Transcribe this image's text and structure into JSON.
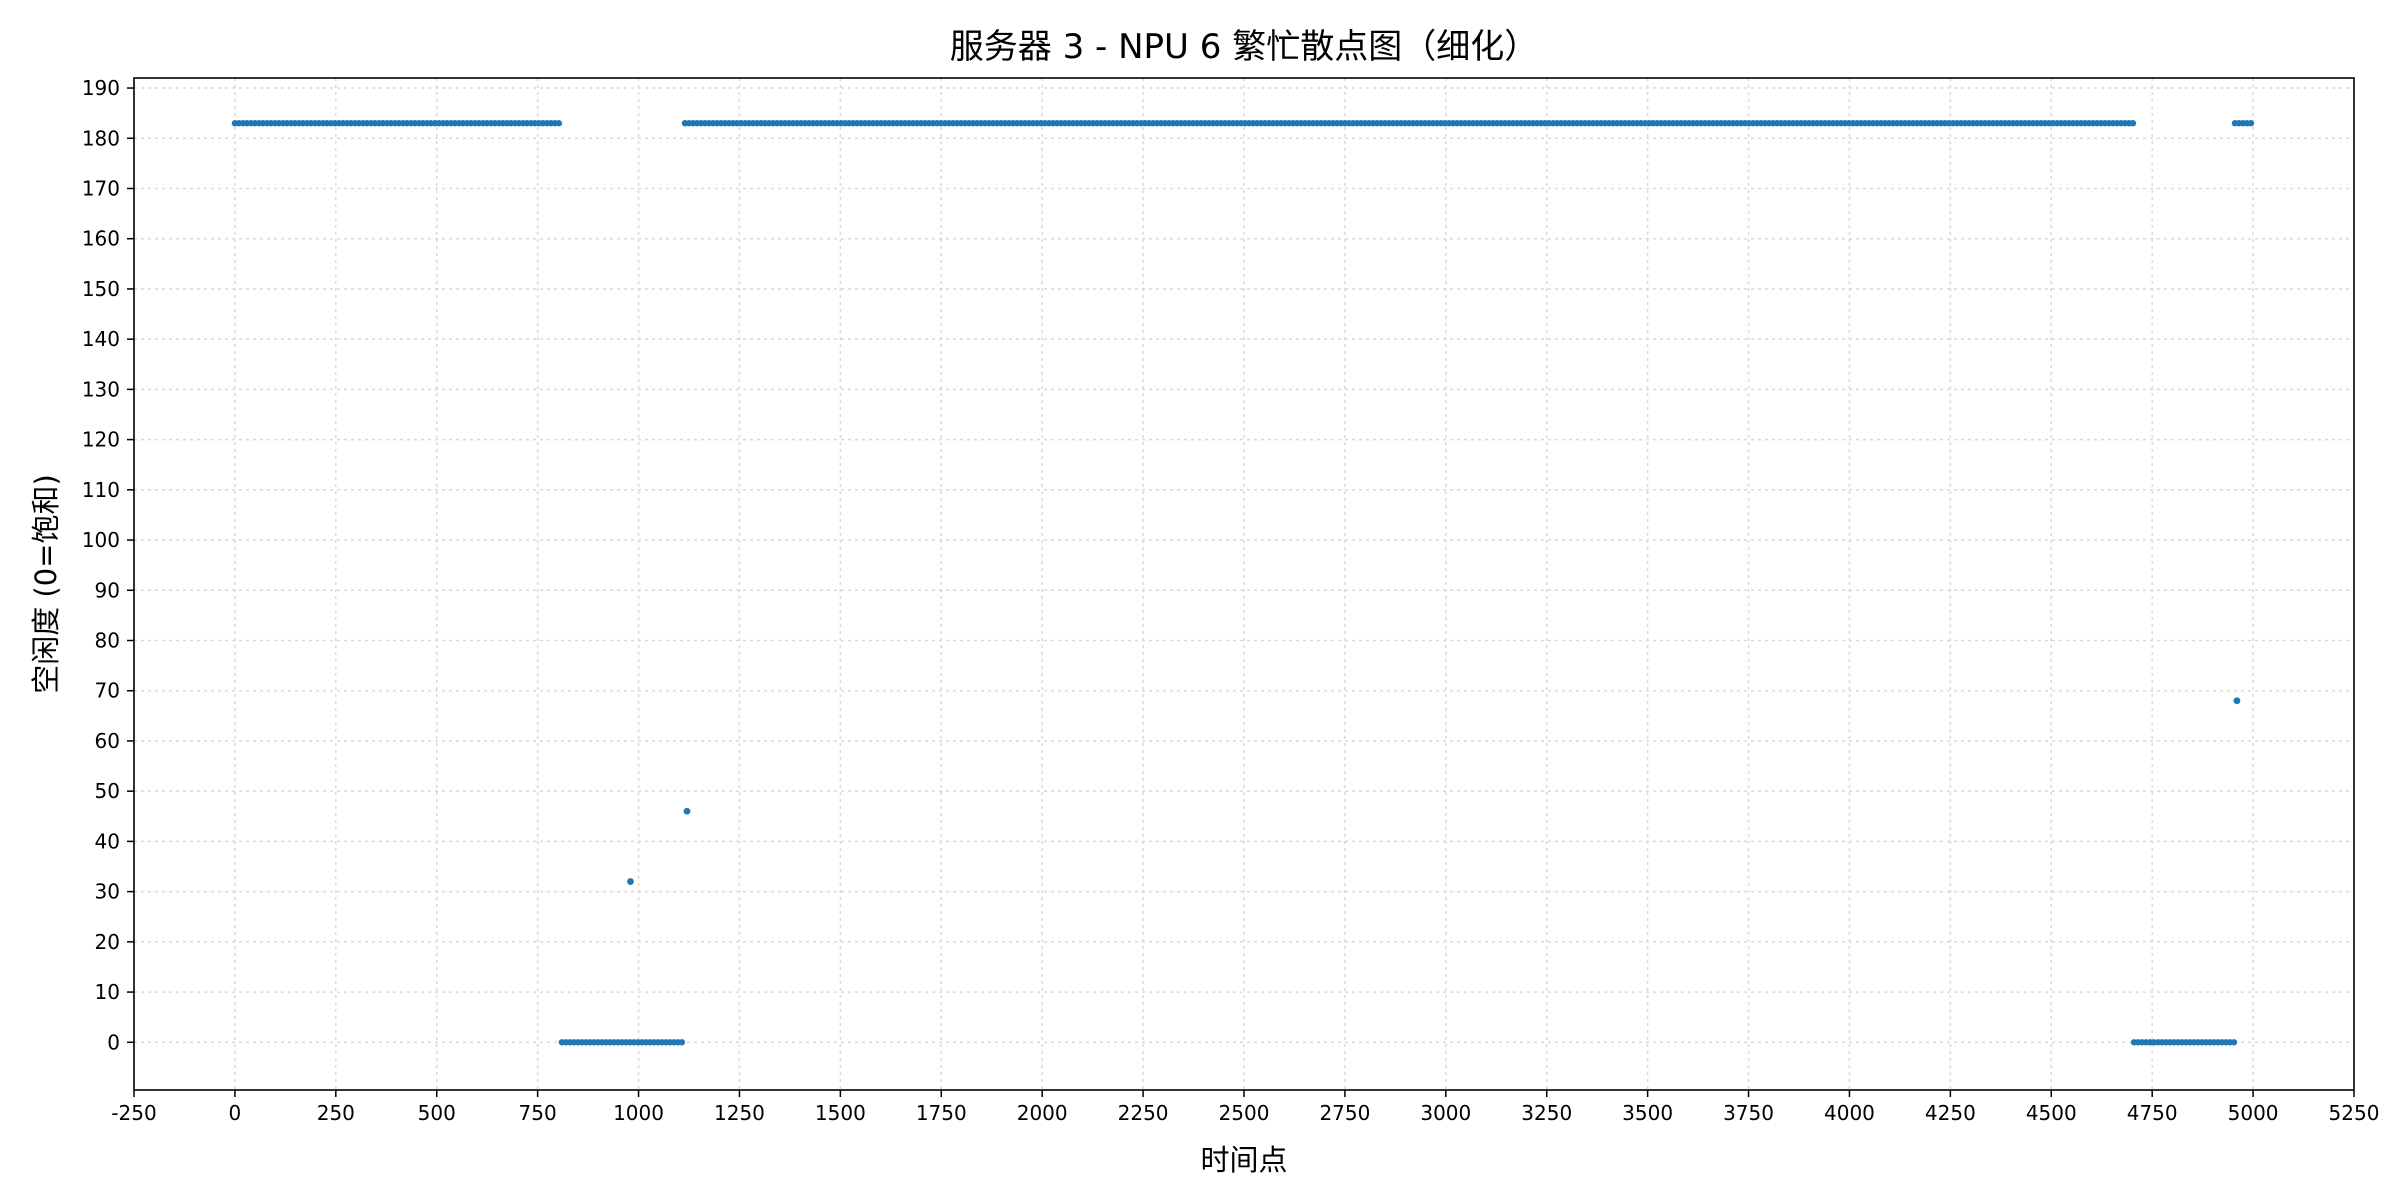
{
  "chart_data": {
    "type": "scatter",
    "title": "服务器 3 - NPU 6 繁忙散点图（细化）",
    "xlabel": "时间点",
    "ylabel": "空闲度 (0=饱和)",
    "xlim": [
      -250,
      5250
    ],
    "ylim": [
      -9.5,
      192
    ],
    "x_ticks": [
      -250,
      0,
      250,
      500,
      750,
      1000,
      1250,
      1500,
      1750,
      2000,
      2250,
      2500,
      2750,
      3000,
      3250,
      3500,
      3750,
      4000,
      4250,
      4500,
      4750,
      5000,
      5250
    ],
    "y_ticks": [
      0,
      10,
      20,
      30,
      40,
      50,
      60,
      70,
      80,
      90,
      100,
      110,
      120,
      130,
      140,
      150,
      160,
      170,
      180,
      190
    ],
    "grid": true,
    "marker_color": "#1f77b4",
    "segments": [
      {
        "x_start": 0,
        "x_end": 810,
        "y": 183
      },
      {
        "x_start": 810,
        "x_end": 1115,
        "y": 0
      },
      {
        "x_start": 1115,
        "x_end": 4705,
        "y": 183
      },
      {
        "x_start": 4705,
        "x_end": 4955,
        "y": 0
      },
      {
        "x_start": 4955,
        "x_end": 5000,
        "y": 183
      }
    ],
    "points": [
      {
        "x": 980,
        "y": 32
      },
      {
        "x": 1120,
        "y": 46
      },
      {
        "x": 4960,
        "y": 68
      }
    ]
  }
}
